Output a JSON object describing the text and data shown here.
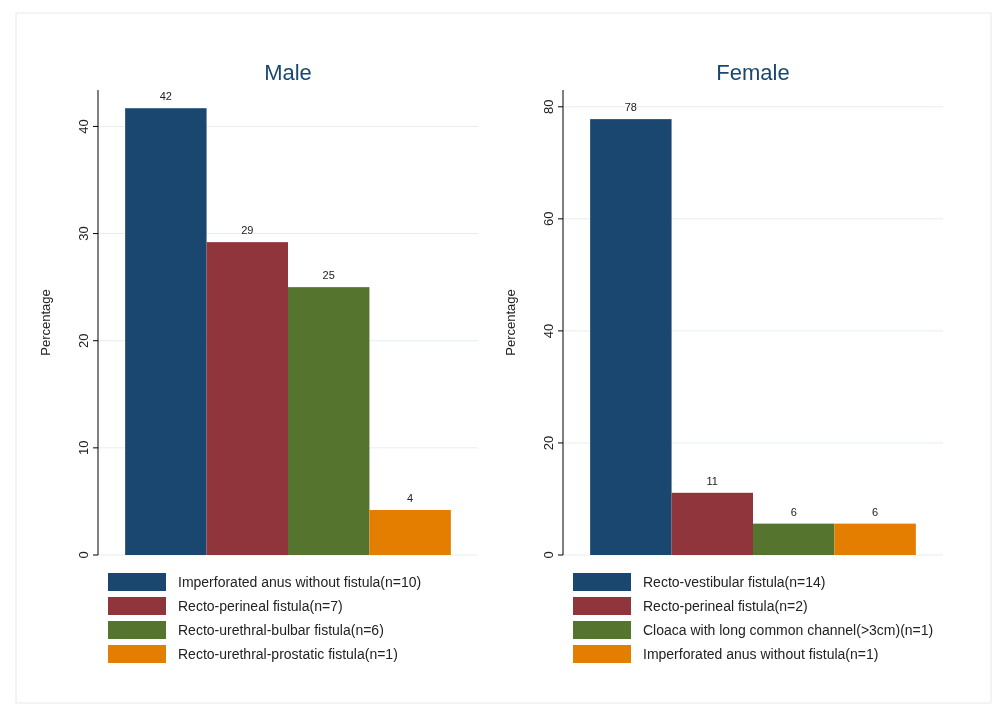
{
  "chart_data": [
    {
      "type": "bar",
      "title": "Male",
      "ylabel": "Percentage",
      "categories": [
        null
      ],
      "ylim": [
        0,
        43.4
      ],
      "yticks": [
        0,
        10,
        20,
        30,
        40
      ],
      "grid": "y",
      "legend": "bottom",
      "series": [
        {
          "name": "Imperforated anus without fistula(n=10)",
          "color": "#1a476f",
          "values": [
            41.7
          ],
          "value_labels": [
            "42"
          ]
        },
        {
          "name": "Recto-perineal fistula(n=7)",
          "color": "#90353b",
          "values": [
            29.2
          ],
          "value_labels": [
            "29"
          ]
        },
        {
          "name": "Recto-urethral-bulbar fistula(n=6)",
          "color": "#55752f",
          "values": [
            25
          ],
          "value_labels": [
            "25"
          ]
        },
        {
          "name": "Recto-urethral-prostatic fistula(n=1)",
          "color": "#e37e00",
          "values": [
            4.2
          ],
          "value_labels": [
            "4"
          ]
        }
      ]
    },
    {
      "type": "bar",
      "title": "Female",
      "ylabel": "Percentage",
      "categories": [
        null
      ],
      "ylim": [
        0,
        83
      ],
      "yticks": [
        0,
        20,
        40,
        60,
        80
      ],
      "grid": "y",
      "legend": "bottom",
      "series": [
        {
          "name": "Recto-vestibular fistula(n=14)",
          "color": "#1a476f",
          "values": [
            77.8
          ],
          "value_labels": [
            "78"
          ]
        },
        {
          "name": "Recto-perineal fistula(n=2)",
          "color": "#90353b",
          "values": [
            11.1
          ],
          "value_labels": [
            "11"
          ]
        },
        {
          "name": "Cloaca with long common channel(>3cm)(n=1)",
          "color": "#55752f",
          "values": [
            5.6
          ],
          "value_labels": [
            "6"
          ]
        },
        {
          "name": "Imperforated anus without fistula(n=1)",
          "color": "#e37e00",
          "values": [
            5.6
          ],
          "value_labels": [
            "6"
          ]
        }
      ]
    }
  ]
}
